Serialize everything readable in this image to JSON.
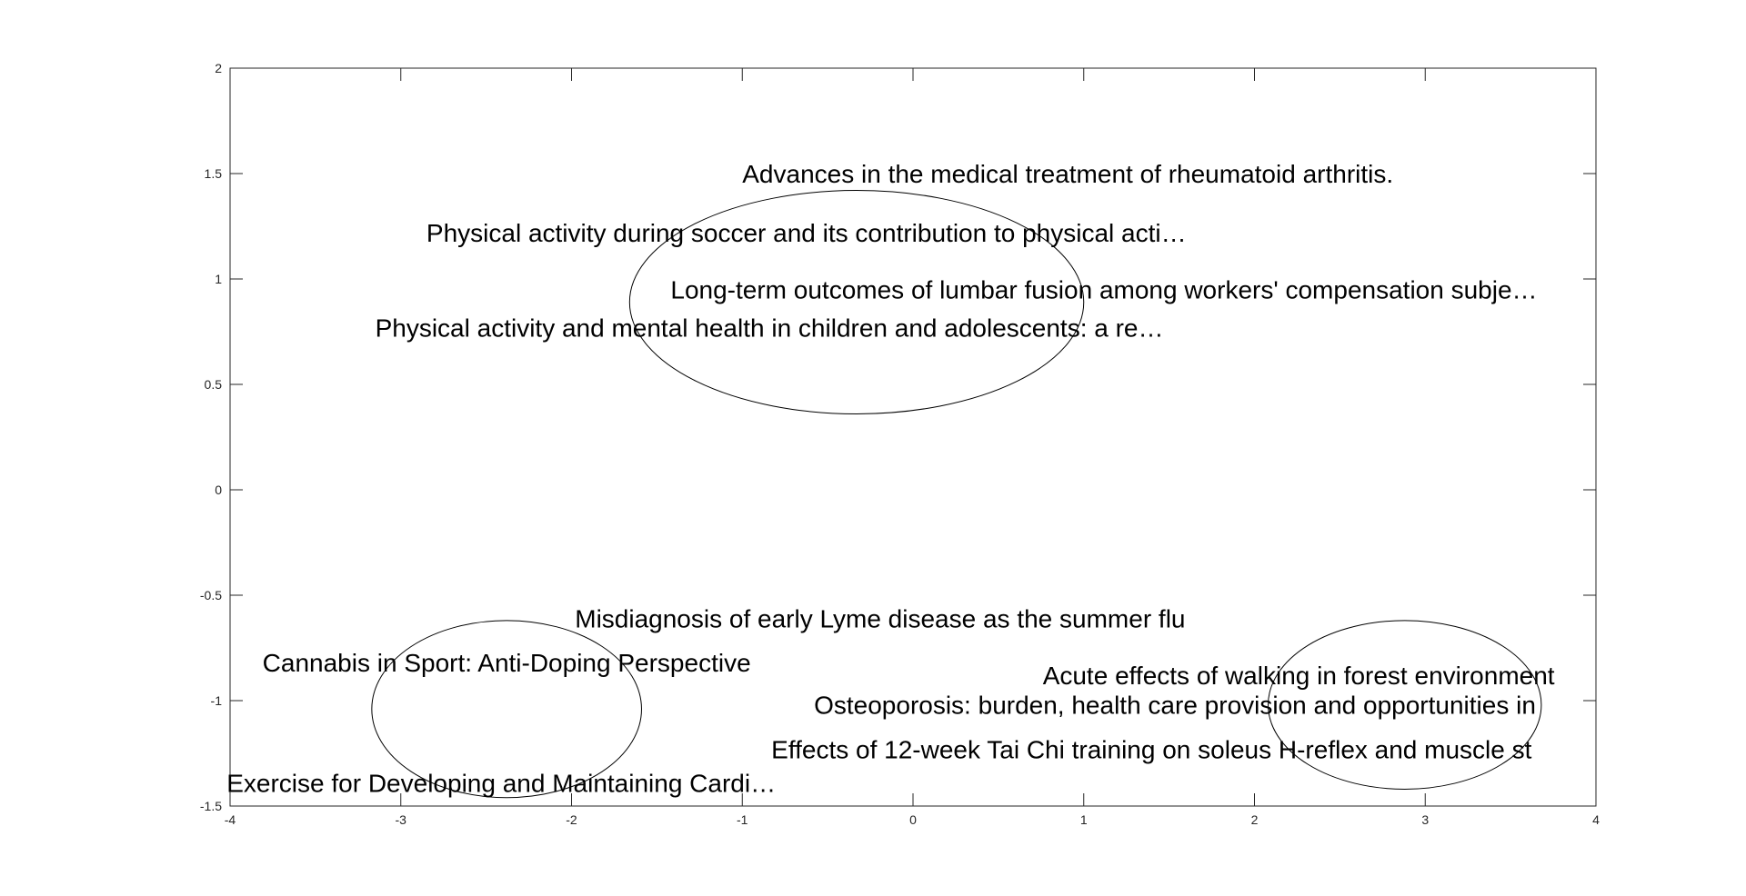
{
  "chart_data": {
    "type": "scatter",
    "title": "",
    "xlabel": "",
    "ylabel": "",
    "xlim": [
      -4,
      4
    ],
    "ylim": [
      -1.5,
      2
    ],
    "grid": false,
    "legend": "none",
    "x_ticks": [
      -4,
      -3,
      -2,
      -1,
      0,
      1,
      2,
      3,
      4
    ],
    "x_tick_labels": [
      "-4",
      "-3",
      "-2",
      "-1",
      "0",
      "1",
      "2",
      "3",
      "4"
    ],
    "y_ticks": [
      -1.5,
      -1,
      -0.5,
      0,
      0.5,
      1,
      1.5,
      2
    ],
    "y_tick_labels": [
      "-1.5",
      "-1",
      "-0.5",
      "0",
      "0.5",
      "1",
      "1.5",
      "2"
    ],
    "points": [
      {
        "label": "Advances in the medical treatment of rheumatoid arthritis.",
        "x": -1.0,
        "y": 1.5
      },
      {
        "label": "Physical activity during soccer and its contribution to physical acti…",
        "x": -2.85,
        "y": 1.22
      },
      {
        "label": "Long-term outcomes of lumbar fusion among workers' compensation subje…",
        "x": -1.42,
        "y": 0.95
      },
      {
        "label": "Physical activity and mental health in children and adolescents: a re…",
        "x": -3.15,
        "y": 0.77
      },
      {
        "label": "Misdiagnosis of early Lyme disease as the summer flu",
        "x": -1.98,
        "y": -0.61
      },
      {
        "label": "Cannabis in Sport: Anti-Doping Perspective",
        "x": -3.81,
        "y": -0.82
      },
      {
        "label": "Acute effects of walking in forest environment",
        "x": 0.76,
        "y": -0.88
      },
      {
        "label": "Osteoporosis: burden, health care provision and opportunities in",
        "x": -0.58,
        "y": -1.02
      },
      {
        "label": "Effects of 12-week Tai Chi training on soleus H-reflex and muscle st",
        "x": -0.83,
        "y": -1.23
      },
      {
        "label": "Exercise for Developing and Maintaining Cardi…",
        "x": -4.02,
        "y": -1.39
      }
    ],
    "clusters": [
      {
        "cx": -0.33,
        "cy": 0.89,
        "rx": 1.33,
        "ry": 0.53
      },
      {
        "cx": -2.38,
        "cy": -1.04,
        "rx": 0.79,
        "ry": 0.42
      },
      {
        "cx": 2.88,
        "cy": -1.02,
        "rx": 0.8,
        "ry": 0.4
      }
    ],
    "colors": {
      "axis": "#262626",
      "text": "#000000",
      "ellipse": "#000000"
    }
  }
}
